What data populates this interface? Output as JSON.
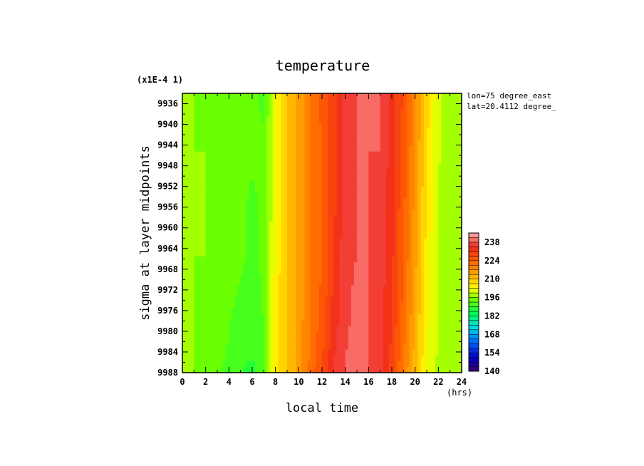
{
  "chart_data": {
    "type": "heatmap",
    "title": "temperature",
    "xlabel": "local time",
    "x_unit": "(hrs)",
    "ylabel": "sigma at layer midpoints",
    "y_multiplier_label": "(x1E-4 1)",
    "annotation_lines": [
      "lon=75 degree_east",
      "lat=20.4112 degree_"
    ],
    "xlim": [
      0,
      24
    ],
    "ylim": [
      9988,
      9934
    ],
    "x_ticks": [
      "0",
      "2",
      "4",
      "6",
      "8",
      "10",
      "12",
      "14",
      "16",
      "18",
      "20",
      "22",
      "24"
    ],
    "y_ticks": [
      "9936",
      "9940",
      "9944",
      "9948",
      "9952",
      "9956",
      "9960",
      "9964",
      "9968",
      "9972",
      "9976",
      "9980",
      "9984",
      "9988"
    ],
    "x": [
      0,
      1,
      2,
      3,
      4,
      5,
      6,
      7,
      8,
      9,
      10,
      11,
      12,
      13,
      14,
      15,
      16,
      17,
      18,
      19,
      20,
      21,
      22,
      23,
      24
    ],
    "y": [
      9935,
      9945,
      9955,
      9965,
      9975,
      9985,
      9988
    ],
    "z": [
      [
        197,
        196,
        195,
        195,
        195,
        194,
        193,
        192,
        202,
        210,
        215,
        220,
        225,
        230,
        236,
        238,
        238,
        238,
        233,
        227,
        218,
        208,
        200,
        198,
        197
      ],
      [
        197,
        196,
        196,
        195,
        194,
        194,
        193,
        193,
        202,
        210,
        215,
        220,
        224,
        230,
        236,
        238,
        238,
        238,
        233,
        226,
        217,
        207,
        200,
        198,
        197
      ],
      [
        197,
        196,
        196,
        195,
        194,
        193,
        192,
        193,
        203,
        210,
        215,
        220,
        224,
        230,
        236,
        238,
        238,
        237,
        232,
        225,
        216,
        206,
        199,
        198,
        197
      ],
      [
        197,
        196,
        196,
        195,
        194,
        193,
        192,
        193,
        204,
        210,
        215,
        220,
        224,
        231,
        237,
        238,
        238,
        237,
        232,
        224,
        215,
        205,
        199,
        198,
        197
      ],
      [
        197,
        196,
        195,
        194,
        193,
        192,
        191,
        193,
        205,
        210,
        215,
        220,
        225,
        232,
        237,
        239,
        238,
        236,
        231,
        223,
        214,
        204,
        199,
        198,
        197
      ],
      [
        197,
        196,
        195,
        194,
        192,
        190,
        189,
        192,
        205,
        210,
        215,
        221,
        227,
        234,
        238,
        239,
        238,
        236,
        230,
        221,
        212,
        203,
        199,
        198,
        197
      ],
      [
        197,
        196,
        195,
        193,
        191,
        189,
        188,
        191,
        205,
        210,
        215,
        222,
        228,
        235,
        238,
        239,
        238,
        236,
        229,
        220,
        211,
        202,
        198,
        198,
        197
      ]
    ],
    "colorbar": {
      "min": 140,
      "max": 245,
      "step": 3.5,
      "tick_labels": [
        "140",
        "154",
        "168",
        "182",
        "196",
        "210",
        "224",
        "238"
      ]
    }
  }
}
